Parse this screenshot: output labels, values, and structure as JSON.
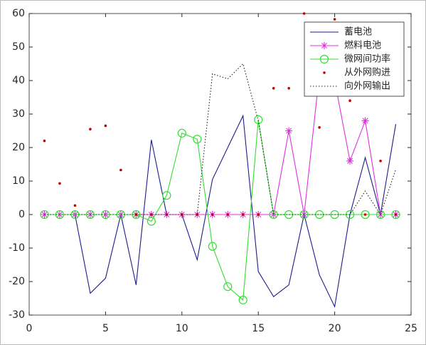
{
  "chart_data": {
    "type": "line",
    "x": [
      1,
      2,
      3,
      4,
      5,
      6,
      7,
      8,
      9,
      10,
      11,
      12,
      13,
      14,
      15,
      16,
      17,
      18,
      19,
      20,
      21,
      22,
      23,
      24
    ],
    "xlim": [
      0,
      25
    ],
    "xticks": [
      0,
      5,
      10,
      15,
      20,
      25
    ],
    "ylim": [
      -30,
      60
    ],
    "yticks": [
      -30,
      -20,
      -10,
      0,
      10,
      20,
      30,
      40,
      50,
      60
    ],
    "legend": "upper right",
    "series": [
      {
        "name": "蓄电池",
        "color": "#1c1c8c",
        "linestyle": "solid",
        "marker": "none",
        "values": [
          0,
          0,
          0,
          -23.5,
          -19,
          0,
          -21,
          22.3,
          0,
          0,
          -13.5,
          10.5,
          20,
          29.5,
          -17,
          -24.5,
          -21,
          0,
          -18,
          -27.5,
          0,
          17,
          0,
          27
        ]
      },
      {
        "name": "燃料电池",
        "color": "#e030e0",
        "linestyle": "solid",
        "marker": "star",
        "values": [
          0,
          0,
          0,
          0,
          0,
          0,
          0,
          0,
          0,
          0,
          0,
          0,
          0,
          0,
          0,
          0,
          25,
          0,
          42,
          40,
          16,
          28,
          0,
          0
        ]
      },
      {
        "name": "微网间功率",
        "color": "#33dd33",
        "linestyle": "solid",
        "marker": "circle",
        "values": [
          0,
          0,
          0,
          0,
          0,
          0,
          0,
          -2,
          5.7,
          24.3,
          22.5,
          -9.5,
          -21.5,
          -25.5,
          28.3,
          0,
          0,
          0,
          0,
          0,
          0,
          0,
          0,
          0
        ]
      },
      {
        "name": "从外网购进",
        "color": "#c00000",
        "linestyle": "none",
        "marker": "dot",
        "values": [
          22,
          9.3,
          2.7,
          25.5,
          26.5,
          13.3,
          0,
          0,
          0,
          0,
          0,
          0,
          0,
          0,
          0,
          37.7,
          37.7,
          60,
          26,
          58.3,
          34,
          0,
          16,
          0
        ]
      },
      {
        "name": "向外网输出",
        "color": "#222222",
        "linestyle": "dotted",
        "marker": "none",
        "values": [
          0,
          0,
          0,
          0,
          0,
          0,
          0,
          0,
          0,
          0,
          0,
          42,
          40.5,
          45,
          28,
          0,
          0,
          0,
          0,
          0,
          0,
          7,
          0,
          13.5
        ]
      }
    ]
  }
}
